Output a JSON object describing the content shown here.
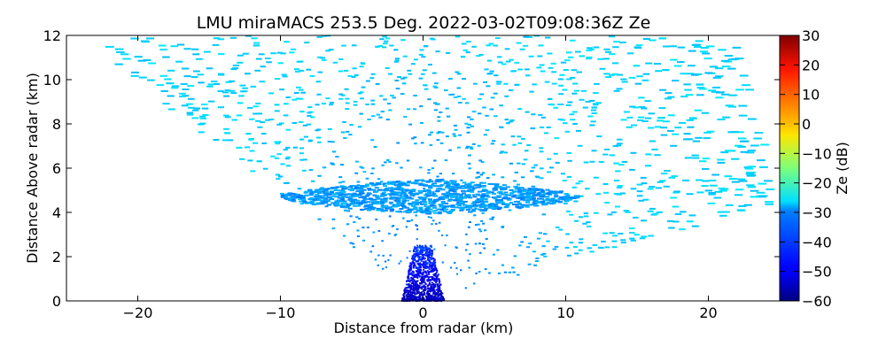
{
  "chart_data": {
    "type": "scatter",
    "subtype": "radar-rhi-scan",
    "title": "LMU miraMACS 253.5 Deg. 2022-03-02T09:08:36Z  Ze",
    "xlabel": "Distance from radar (km)",
    "ylabel": "Distance Above radar  (km)",
    "xlim": [
      -25,
      25
    ],
    "ylim": [
      0,
      12
    ],
    "xticks": [
      -20,
      -10,
      0,
      10,
      20
    ],
    "yticks": [
      0,
      2,
      4,
      6,
      8,
      10,
      12
    ],
    "xtick_labels": [
      "−20",
      "−10",
      "0",
      "10",
      "20"
    ],
    "ytick_labels": [
      "0",
      "2",
      "4",
      "6",
      "8",
      "10",
      "12"
    ],
    "grid": false,
    "scan_sector": {
      "left_edge_elevation_deg": 154,
      "right_edge_elevation_deg": 10,
      "max_range_km": 25,
      "top_edge_km": 12
    },
    "features": [
      {
        "name": "cloud layer",
        "x_range": [
          -10,
          11
        ],
        "y_range": [
          3.9,
          5.5
        ],
        "ze_dB": -35
      },
      {
        "name": "near-radar clutter",
        "x_range": [
          -1.5,
          1.5
        ],
        "y_range": [
          0,
          2.5
        ],
        "ze_dB": -55
      },
      {
        "name": "background noise",
        "ze_dB": -30
      }
    ],
    "colorbar": {
      "label": "Ze (dB)",
      "colormap": "jet",
      "range": [
        -60,
        30
      ],
      "ticks": [
        -60,
        -50,
        -40,
        -30,
        -20,
        -10,
        0,
        10,
        20,
        30
      ],
      "tick_labels": [
        "−60",
        "−50",
        "−40",
        "−30",
        "−20",
        "−10",
        "0",
        "10",
        "20",
        "30"
      ]
    }
  }
}
